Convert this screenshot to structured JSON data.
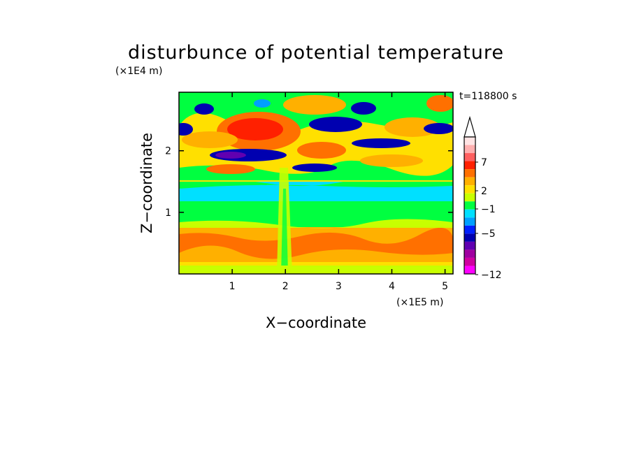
{
  "chart_data": {
    "type": "heatmap",
    "title": "disturbunce of potential temperature",
    "xlabel": "X−coordinate",
    "ylabel": "Z−coordinate",
    "x_unit_label": "(×1E5 m)",
    "y_unit_label": "(×1E4 m)",
    "time_label": "t=118800 s",
    "x_ticks": [
      "1",
      "2",
      "3",
      "4",
      "5"
    ],
    "y_ticks": [
      "1",
      "2"
    ],
    "xlim": [
      0,
      5.15
    ],
    "ylim": [
      0,
      2.95
    ],
    "grid": false,
    "colorbar": {
      "labels": [
        "7",
        "2",
        "−1",
        "−5",
        "−12"
      ],
      "colors_top_to_bottom": [
        "#ffe4e4",
        "#ffb0b0",
        "#ff6060",
        "#ff2000",
        "#ff7000",
        "#ffb000",
        "#ffe000",
        "#c8ff00",
        "#00ff40",
        "#00e0ff",
        "#00a0ff",
        "#0020ff",
        "#0000b0",
        "#6000b0",
        "#a000a0",
        "#d000a0",
        "#ff00ff"
      ]
    },
    "bands": [
      {
        "z": [
          0.0,
          0.25
        ],
        "level": "yellow"
      },
      {
        "z": [
          0.25,
          0.7
        ],
        "level": "orange"
      },
      {
        "z": [
          0.7,
          1.1
        ],
        "level": "green"
      },
      {
        "z": [
          1.1,
          1.45
        ],
        "level": "cyan"
      },
      {
        "z": [
          1.45,
          2.3
        ],
        "level": "mixed blue/orange"
      },
      {
        "z": [
          2.3,
          2.95
        ],
        "level": "mixed red/blue"
      }
    ]
  }
}
